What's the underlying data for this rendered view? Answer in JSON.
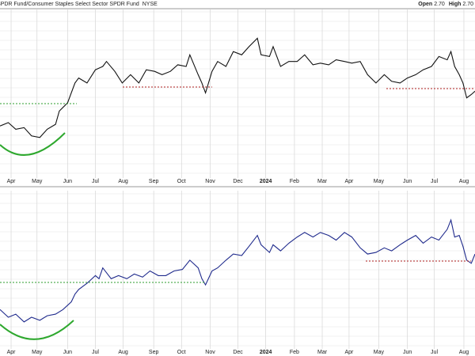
{
  "chart_data": [
    {
      "type": "line",
      "title": "SPDR Fund/Consumer Staples Select Sector SPDR Fund",
      "exchange": "NYSE",
      "quote": [
        {
          "label": "Open",
          "value": "2.70"
        },
        {
          "label": "High",
          "value": "2.70"
        }
      ],
      "x": [
        0,
        9,
        17,
        26,
        34,
        43,
        51,
        60,
        64,
        73,
        81,
        85,
        94,
        103,
        111,
        115,
        124,
        132,
        141,
        150,
        158,
        167,
        175,
        184,
        192,
        201,
        205,
        214,
        218,
        222,
        229,
        235,
        244,
        252,
        261,
        269,
        278,
        282,
        291,
        295,
        303,
        312,
        321,
        329,
        338,
        346,
        355,
        363,
        372,
        380,
        389,
        397,
        406,
        415,
        423,
        432,
        440,
        449,
        457,
        466,
        474,
        483,
        487,
        491,
        496,
        500,
        504,
        509,
        513
      ],
      "series": [
        {
          "color": "#111111",
          "values": [
            31,
            33,
            29,
            30,
            25,
            24,
            29,
            32,
            40,
            45,
            57,
            60,
            57,
            65,
            67,
            70,
            64,
            57,
            62,
            57,
            65,
            64,
            62,
            64,
            68,
            67,
            74,
            62,
            57,
            51,
            64,
            70,
            67,
            76,
            74,
            79,
            84,
            74,
            73,
            79,
            67,
            70,
            70,
            74,
            68,
            69,
            68,
            71,
            70,
            69,
            70,
            62,
            57,
            62,
            58,
            57,
            60,
            62,
            65,
            67,
            73,
            71,
            76,
            67,
            62,
            57,
            48,
            50,
            52
          ]
        }
      ],
      "xlim": [
        0,
        513
      ],
      "ylim": [
        0,
        100
      ],
      "xticks": [
        {
          "value": 12,
          "label": "Apr"
        },
        {
          "value": 40,
          "label": "May"
        },
        {
          "value": 73,
          "label": "Jun"
        },
        {
          "value": 103,
          "label": "Jul"
        },
        {
          "value": 133,
          "label": "Aug"
        },
        {
          "value": 166,
          "label": "Sep"
        },
        {
          "value": 196,
          "label": "Oct"
        },
        {
          "value": 227,
          "label": "Nov"
        },
        {
          "value": 257,
          "label": "Dec"
        },
        {
          "value": 287,
          "label": "2024"
        },
        {
          "value": 318,
          "label": "Feb"
        },
        {
          "value": 348,
          "label": "Mar"
        },
        {
          "value": 377,
          "label": "Apr"
        },
        {
          "value": 409,
          "label": "May"
        },
        {
          "value": 440,
          "label": "Jun"
        },
        {
          "value": 469,
          "label": "Jul"
        },
        {
          "value": 501,
          "label": "Aug"
        }
      ],
      "grid": true
    },
    {
      "type": "line",
      "x": [
        0,
        9,
        17,
        26,
        34,
        43,
        51,
        60,
        68,
        77,
        81,
        85,
        94,
        103,
        107,
        111,
        120,
        128,
        137,
        145,
        154,
        162,
        171,
        179,
        188,
        197,
        205,
        214,
        218,
        222,
        229,
        235,
        244,
        252,
        261,
        269,
        278,
        282,
        291,
        295,
        303,
        312,
        321,
        329,
        338,
        346,
        355,
        363,
        372,
        380,
        389,
        397,
        406,
        415,
        423,
        432,
        440,
        449,
        457,
        466,
        474,
        483,
        487,
        491,
        496,
        500,
        504,
        509,
        513
      ],
      "series": [
        {
          "color": "#1f2a8c",
          "values": [
            25,
            20,
            22,
            17,
            20,
            18,
            21,
            22,
            25,
            30,
            35,
            38,
            42,
            47,
            45,
            52,
            45,
            47,
            45,
            48,
            46,
            50,
            47,
            47,
            50,
            51,
            57,
            52,
            45,
            41,
            50,
            52,
            57,
            61,
            60,
            66,
            73,
            67,
            62,
            67,
            63,
            68,
            72,
            75,
            72,
            75,
            73,
            70,
            75,
            72,
            65,
            61,
            62,
            65,
            63,
            67,
            70,
            73,
            68,
            72,
            70,
            77,
            83,
            72,
            73,
            66,
            57,
            55,
            61
          ]
        }
      ],
      "xlim": [
        0,
        513
      ],
      "ylim": [
        0,
        100
      ],
      "xticks": [
        {
          "value": 12,
          "label": "Apr"
        },
        {
          "value": 40,
          "label": "May"
        },
        {
          "value": 73,
          "label": "Jun"
        },
        {
          "value": 103,
          "label": "Jul"
        },
        {
          "value": 133,
          "label": "Aug"
        },
        {
          "value": 166,
          "label": "Sep"
        },
        {
          "value": 196,
          "label": "Oct"
        },
        {
          "value": 227,
          "label": "Nov"
        },
        {
          "value": 257,
          "label": "Dec"
        },
        {
          "value": 287,
          "label": "2024"
        },
        {
          "value": 318,
          "label": "Feb"
        },
        {
          "value": 348,
          "label": "Mar"
        },
        {
          "value": 377,
          "label": "Apr"
        },
        {
          "value": 409,
          "label": "May"
        },
        {
          "value": 440,
          "label": "Jun"
        },
        {
          "value": 469,
          "label": "Jul"
        },
        {
          "value": 501,
          "label": "Aug"
        }
      ],
      "grid": true
    }
  ]
}
